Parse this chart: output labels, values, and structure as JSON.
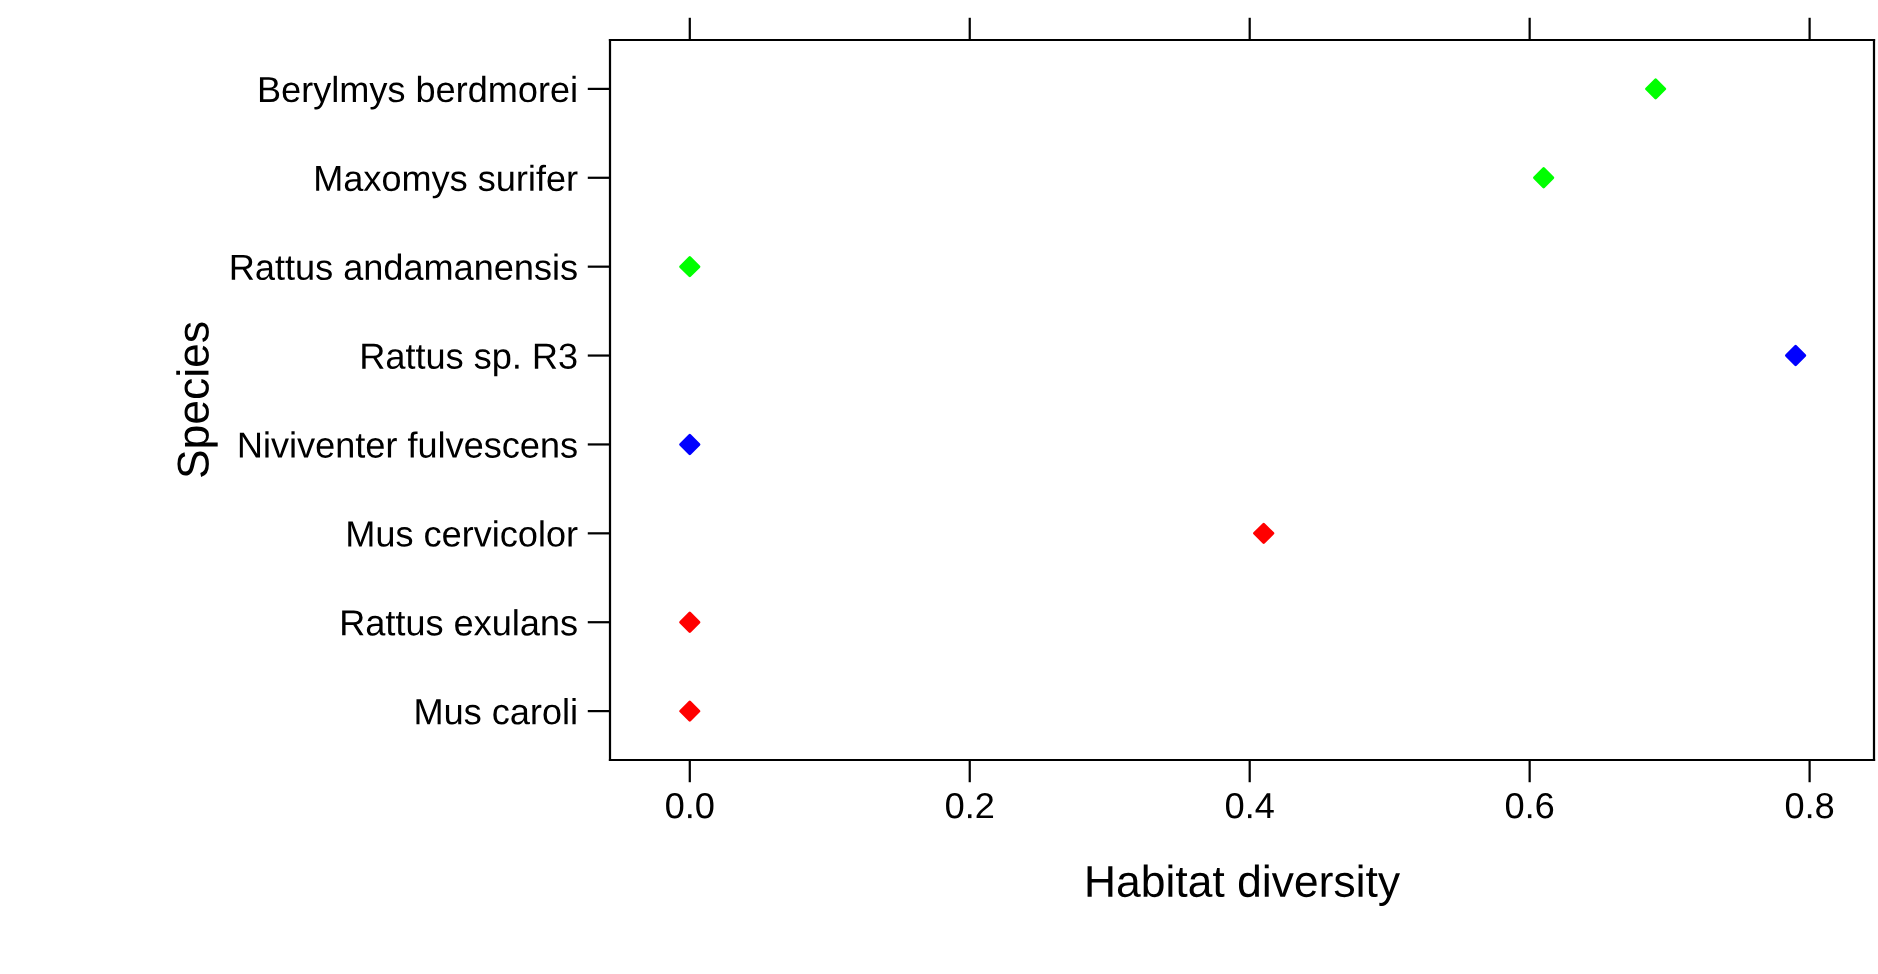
{
  "chart_data": {
    "type": "scatter",
    "orientation": "horizontal",
    "xlabel": "Habitat diversity",
    "ylabel": "Species",
    "categories": [
      "Berylmys berdmorei",
      "Maxomys surifer",
      "Rattus andamanensis",
      "Rattus sp. R3",
      "Niviventer fulvescens",
      "Mus cervicolor",
      "Rattus exulans",
      "Mus caroli"
    ],
    "series": [
      {
        "color": "#00ff00",
        "values": [
          0.69,
          0.61,
          0,
          null,
          null,
          null,
          null,
          null
        ]
      },
      {
        "color": "#0000ff",
        "values": [
          null,
          null,
          null,
          0.79,
          0,
          null,
          null,
          null
        ]
      },
      {
        "color": "#ff0000",
        "values": [
          null,
          null,
          null,
          null,
          null,
          0.41,
          0,
          0
        ]
      }
    ],
    "xlim": [
      -0.057,
      0.846
    ],
    "xticks": [
      {
        "value": 0,
        "label": "0.0"
      },
      0.2,
      0.4,
      0.6,
      0.8
    ],
    "marker": "diamond",
    "grid": false,
    "legend": false
  }
}
